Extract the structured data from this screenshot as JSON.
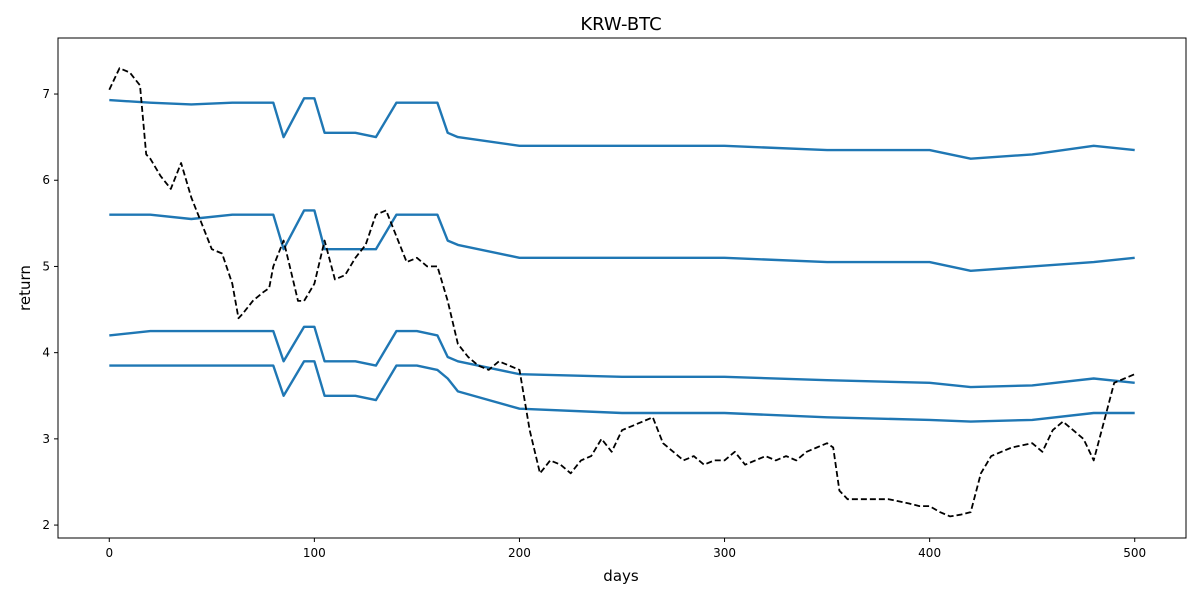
{
  "chart_data": {
    "type": "line",
    "title": "KRW-BTC",
    "xlabel": "days",
    "ylabel": "return",
    "xlim": [
      -25,
      525
    ],
    "ylim": [
      1.85,
      7.65
    ],
    "xticks": [
      0,
      100,
      200,
      300,
      400,
      500
    ],
    "yticks": [
      2,
      3,
      4,
      5,
      6,
      7
    ],
    "grid": false,
    "legend": "none",
    "colors": {
      "series": "#1f77b4",
      "actual": "#000000"
    },
    "series": [
      {
        "style": "solid",
        "x": [
          0,
          20,
          40,
          60,
          75,
          80,
          85,
          95,
          100,
          105,
          120,
          130,
          140,
          150,
          160,
          165,
          170,
          200,
          250,
          300,
          350,
          400,
          420,
          450,
          480,
          500
        ],
        "values": [
          6.93,
          6.9,
          6.88,
          6.9,
          6.9,
          6.9,
          6.5,
          6.95,
          6.95,
          6.55,
          6.55,
          6.5,
          6.9,
          6.9,
          6.9,
          6.55,
          6.5,
          6.4,
          6.4,
          6.4,
          6.35,
          6.35,
          6.25,
          6.3,
          6.4,
          6.35
        ]
      },
      {
        "style": "solid",
        "x": [
          0,
          20,
          40,
          60,
          75,
          80,
          85,
          95,
          100,
          105,
          120,
          130,
          140,
          150,
          160,
          165,
          170,
          200,
          250,
          300,
          350,
          400,
          420,
          450,
          480,
          500
        ],
        "values": [
          5.6,
          5.6,
          5.55,
          5.6,
          5.6,
          5.6,
          5.2,
          5.65,
          5.65,
          5.2,
          5.2,
          5.2,
          5.6,
          5.6,
          5.6,
          5.3,
          5.25,
          5.1,
          5.1,
          5.1,
          5.05,
          5.05,
          4.95,
          5.0,
          5.05,
          5.1
        ]
      },
      {
        "style": "solid",
        "x": [
          0,
          20,
          40,
          60,
          75,
          80,
          85,
          95,
          100,
          105,
          120,
          130,
          140,
          150,
          160,
          165,
          170,
          200,
          250,
          300,
          350,
          400,
          420,
          450,
          480,
          500
        ],
        "values": [
          4.2,
          4.25,
          4.25,
          4.25,
          4.25,
          4.25,
          3.9,
          4.3,
          4.3,
          3.9,
          3.9,
          3.85,
          4.25,
          4.25,
          4.2,
          3.95,
          3.9,
          3.75,
          3.72,
          3.72,
          3.68,
          3.65,
          3.6,
          3.62,
          3.7,
          3.65
        ]
      },
      {
        "style": "solid",
        "x": [
          0,
          20,
          40,
          60,
          75,
          80,
          85,
          95,
          100,
          105,
          120,
          130,
          140,
          150,
          160,
          165,
          170,
          200,
          250,
          300,
          350,
          400,
          420,
          450,
          480,
          500
        ],
        "values": [
          3.85,
          3.85,
          3.85,
          3.85,
          3.85,
          3.85,
          3.5,
          3.9,
          3.9,
          3.5,
          3.5,
          3.45,
          3.85,
          3.85,
          3.8,
          3.7,
          3.55,
          3.35,
          3.3,
          3.3,
          3.25,
          3.22,
          3.2,
          3.22,
          3.3,
          3.3
        ]
      },
      {
        "style": "dashed",
        "x": [
          0,
          5,
          10,
          15,
          18,
          20,
          25,
          30,
          35,
          40,
          45,
          50,
          55,
          60,
          63,
          65,
          70,
          75,
          78,
          80,
          85,
          88,
          92,
          95,
          100,
          105,
          110,
          115,
          120,
          125,
          130,
          135,
          140,
          145,
          150,
          155,
          160,
          165,
          170,
          175,
          180,
          185,
          190,
          195,
          200,
          205,
          210,
          215,
          220,
          225,
          230,
          235,
          240,
          245,
          250,
          255,
          260,
          265,
          270,
          275,
          280,
          285,
          290,
          295,
          300,
          305,
          310,
          315,
          320,
          325,
          330,
          335,
          340,
          345,
          350,
          353,
          356,
          360,
          370,
          380,
          390,
          395,
          400,
          405,
          410,
          415,
          420,
          425,
          430,
          440,
          450,
          455,
          460,
          465,
          470,
          475,
          480,
          485,
          490,
          495,
          500
        ],
        "values": [
          7.05,
          7.3,
          7.25,
          7.1,
          6.3,
          6.25,
          6.05,
          5.9,
          6.2,
          5.8,
          5.5,
          5.2,
          5.15,
          4.8,
          4.4,
          4.45,
          4.6,
          4.7,
          4.75,
          5.0,
          5.3,
          5.0,
          4.6,
          4.6,
          4.8,
          5.3,
          4.85,
          4.9,
          5.1,
          5.25,
          5.6,
          5.65,
          5.35,
          5.05,
          5.1,
          5.0,
          5.0,
          4.6,
          4.1,
          3.95,
          3.85,
          3.8,
          3.9,
          3.85,
          3.8,
          3.1,
          2.6,
          2.75,
          2.7,
          2.6,
          2.75,
          2.8,
          3.0,
          2.85,
          3.1,
          3.15,
          3.2,
          3.25,
          2.95,
          2.85,
          2.75,
          2.8,
          2.7,
          2.75,
          2.75,
          2.85,
          2.7,
          2.75,
          2.8,
          2.75,
          2.8,
          2.75,
          2.85,
          2.9,
          2.95,
          2.9,
          2.4,
          2.3,
          2.3,
          2.3,
          2.25,
          2.22,
          2.22,
          2.15,
          2.1,
          2.12,
          2.15,
          2.6,
          2.8,
          2.9,
          2.95,
          2.85,
          3.1,
          3.2,
          3.1,
          3.0,
          2.75,
          3.2,
          3.65,
          3.7,
          3.75
        ]
      }
    ]
  }
}
